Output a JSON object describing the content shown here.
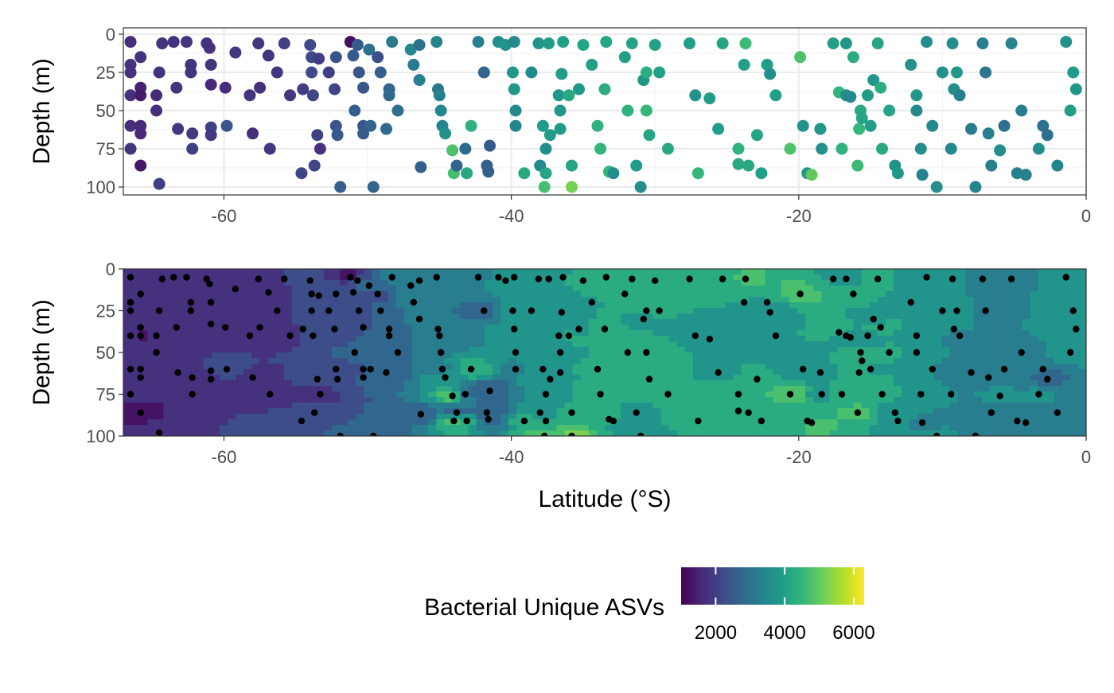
{
  "chart_data": [
    {
      "type": "scatter",
      "title": "",
      "xlabel": "",
      "ylabel": "Depth (m)",
      "xlim": [
        -67,
        0
      ],
      "ylim": [
        0,
        100
      ],
      "y_reversed": true,
      "x_ticks": [
        -60,
        -40,
        -20,
        0
      ],
      "y_ticks": [
        0,
        25,
        50,
        75,
        100
      ],
      "grid": true,
      "color_variable": "Bacterial Unique ASVs",
      "points": [
        [
          -66.5,
          5,
          1700
        ],
        [
          -66.5,
          20,
          1800
        ],
        [
          -66.5,
          25,
          1750
        ],
        [
          -66.5,
          40,
          1750
        ],
        [
          -66.5,
          60,
          1700
        ],
        [
          -66.5,
          75,
          1800
        ],
        [
          -65.8,
          15,
          1750
        ],
        [
          -65.8,
          35,
          1500
        ],
        [
          -65.8,
          40,
          1400
        ],
        [
          -65.8,
          60,
          1650
        ],
        [
          -65.8,
          65,
          1600
        ],
        [
          -65.8,
          86,
          1300
        ],
        [
          -64.7,
          40,
          1650
        ],
        [
          -64.7,
          50,
          1700
        ],
        [
          -64.5,
          25,
          1750
        ],
        [
          -64.5,
          98,
          2000
        ],
        [
          -64.3,
          6,
          1800
        ],
        [
          -63.5,
          5,
          1750
        ],
        [
          -63.3,
          35,
          1800
        ],
        [
          -63.2,
          62,
          1850
        ],
        [
          -62.6,
          5,
          1800
        ],
        [
          -62.3,
          20,
          1800
        ],
        [
          -62.3,
          25,
          1800
        ],
        [
          -62.2,
          65,
          1900
        ],
        [
          -62.2,
          75,
          2000
        ],
        [
          -61.2,
          6,
          1800
        ],
        [
          -61.0,
          9,
          1750
        ],
        [
          -60.9,
          20,
          1800
        ],
        [
          -60.9,
          33,
          1600
        ],
        [
          -60.9,
          61,
          2000
        ],
        [
          -60.9,
          66,
          1900
        ],
        [
          -59.9,
          35,
          1700
        ],
        [
          -59.8,
          60,
          2400
        ],
        [
          -59.2,
          12,
          1850
        ],
        [
          -58.2,
          40,
          1800
        ],
        [
          -58.0,
          65,
          1700
        ],
        [
          -57.6,
          6,
          1850
        ],
        [
          -57.5,
          35,
          1750
        ],
        [
          -56.9,
          14,
          1800
        ],
        [
          -56.8,
          75,
          1850
        ],
        [
          -56.3,
          25,
          1850
        ],
        [
          -55.8,
          6,
          2000
        ],
        [
          -55.4,
          40,
          1850
        ],
        [
          -54.6,
          91,
          2100
        ],
        [
          -54.5,
          36,
          2000
        ],
        [
          -54.0,
          7,
          2200
        ],
        [
          -53.9,
          15,
          2200
        ],
        [
          -53.9,
          25,
          2200
        ],
        [
          -53.8,
          40,
          2100
        ],
        [
          -53.7,
          86,
          2100
        ],
        [
          -53.5,
          66,
          2050
        ],
        [
          -53.4,
          16,
          2000
        ],
        [
          -53.3,
          75,
          1750
        ],
        [
          -52.7,
          25,
          2000
        ],
        [
          -52.3,
          36,
          2100
        ],
        [
          -52.2,
          15,
          2350
        ],
        [
          -52.2,
          60,
          2400
        ],
        [
          -52.1,
          66,
          2500
        ],
        [
          -51.9,
          100,
          2600
        ],
        [
          -51.2,
          5,
          1200
        ],
        [
          -51.0,
          14,
          2500
        ],
        [
          -50.9,
          50,
          2600
        ],
        [
          -50.7,
          7,
          2500
        ],
        [
          -50.6,
          25,
          2400
        ],
        [
          -50.3,
          35,
          2450
        ],
        [
          -50.3,
          60,
          2400
        ],
        [
          -50.3,
          65,
          2500
        ],
        [
          -49.9,
          10,
          3000
        ],
        [
          -49.8,
          60,
          2700
        ],
        [
          -49.6,
          100,
          2700
        ],
        [
          -49.3,
          15,
          2300
        ],
        [
          -49.1,
          25,
          2600
        ],
        [
          -48.7,
          62,
          2800
        ],
        [
          -48.5,
          36,
          2700
        ],
        [
          -48.5,
          40,
          2800
        ],
        [
          -48.3,
          5,
          3200
        ],
        [
          -47.9,
          50,
          2900
        ],
        [
          -47.0,
          10,
          3500
        ],
        [
          -46.8,
          20,
          3200
        ],
        [
          -46.4,
          7,
          3000
        ],
        [
          -46.4,
          30,
          3300
        ],
        [
          -46.3,
          87,
          2600
        ],
        [
          -45.2,
          5,
          3400
        ],
        [
          -45.1,
          36,
          3100
        ],
        [
          -45.0,
          40,
          3300
        ],
        [
          -44.9,
          50,
          3500
        ],
        [
          -44.8,
          60,
          3400
        ],
        [
          -44.6,
          65,
          3700
        ],
        [
          -44.1,
          76,
          4800
        ],
        [
          -44.0,
          91,
          4700
        ],
        [
          -43.8,
          86,
          2700
        ],
        [
          -43.2,
          75,
          2800
        ],
        [
          -43.1,
          91,
          4200
        ],
        [
          -42.8,
          60,
          4400
        ],
        [
          -42.3,
          5,
          3300
        ],
        [
          -41.9,
          25,
          2700
        ],
        [
          -41.7,
          86,
          2600
        ],
        [
          -41.6,
          90,
          2600
        ],
        [
          -41.5,
          73,
          2500
        ],
        [
          -40.9,
          5,
          3600
        ],
        [
          -40.4,
          7,
          3700
        ],
        [
          -39.9,
          25,
          3800
        ],
        [
          -39.8,
          5,
          3500
        ],
        [
          -39.8,
          36,
          3800
        ],
        [
          -39.7,
          50,
          3500
        ],
        [
          -39.7,
          60,
          3400
        ],
        [
          -39.1,
          91,
          4200
        ],
        [
          -38.6,
          25,
          3500
        ],
        [
          -38.1,
          6,
          3700
        ],
        [
          -38.0,
          86,
          3500
        ],
        [
          -37.8,
          60,
          3900
        ],
        [
          -37.7,
          100,
          4700
        ],
        [
          -37.6,
          75,
          3600
        ],
        [
          -37.6,
          91,
          4100
        ],
        [
          -37.4,
          6,
          3900
        ],
        [
          -37.3,
          66,
          3900
        ],
        [
          -36.7,
          40,
          3800
        ],
        [
          -36.6,
          50,
          3800
        ],
        [
          -36.6,
          62,
          3900
        ],
        [
          -36.5,
          26,
          3900
        ],
        [
          -36.4,
          5,
          4000
        ],
        [
          -36.0,
          40,
          4200
        ],
        [
          -35.8,
          86,
          4100
        ],
        [
          -35.8,
          100,
          5200
        ],
        [
          -35.3,
          36,
          3800
        ],
        [
          -35.0,
          7,
          4100
        ],
        [
          -34.4,
          20,
          4000
        ],
        [
          -34.0,
          60,
          4400
        ],
        [
          -33.8,
          75,
          4500
        ],
        [
          -33.5,
          36,
          4300
        ],
        [
          -33.4,
          5,
          4100
        ],
        [
          -33.2,
          90,
          4500
        ],
        [
          -32.9,
          91,
          3600
        ],
        [
          -32.1,
          15,
          4000
        ],
        [
          -31.9,
          50,
          4400
        ],
        [
          -31.6,
          6,
          4100
        ],
        [
          -31.3,
          86,
          3900
        ],
        [
          -31.0,
          100,
          3600
        ],
        [
          -30.8,
          30,
          3800
        ],
        [
          -30.6,
          25,
          4300
        ],
        [
          -30.6,
          50,
          4500
        ],
        [
          -30.4,
          66,
          4100
        ],
        [
          -30.0,
          7,
          4000
        ],
        [
          -29.7,
          25,
          4000
        ],
        [
          -29.1,
          75,
          4200
        ],
        [
          -27.6,
          6,
          4000
        ],
        [
          -27.2,
          40,
          3700
        ],
        [
          -27.0,
          91,
          4500
        ],
        [
          -26.2,
          42,
          3900
        ],
        [
          -25.6,
          62,
          3900
        ],
        [
          -25.3,
          6,
          4100
        ],
        [
          -24.2,
          75,
          4400
        ],
        [
          -24.2,
          85,
          4200
        ],
        [
          -23.8,
          20,
          4000
        ],
        [
          -23.7,
          6,
          4600
        ],
        [
          -23.5,
          86,
          4200
        ],
        [
          -22.9,
          66,
          4100
        ],
        [
          -22.6,
          91,
          4000
        ],
        [
          -22.2,
          20,
          4000
        ],
        [
          -22.0,
          26,
          3600
        ],
        [
          -21.6,
          40,
          4000
        ],
        [
          -20.6,
          75,
          4800
        ],
        [
          -19.9,
          15,
          4800
        ],
        [
          -19.7,
          60,
          3700
        ],
        [
          -19.4,
          91,
          3800
        ],
        [
          -19.1,
          92,
          5000
        ],
        [
          -18.5,
          62,
          3800
        ],
        [
          -18.4,
          75,
          3700
        ],
        [
          -17.6,
          6,
          4000
        ],
        [
          -17.2,
          38,
          4500
        ],
        [
          -17.0,
          75,
          4400
        ],
        [
          -16.7,
          6,
          3800
        ],
        [
          -16.7,
          40,
          3600
        ],
        [
          -16.4,
          41,
          3500
        ],
        [
          -16.2,
          15,
          4300
        ],
        [
          -15.9,
          86,
          4600
        ],
        [
          -15.8,
          62,
          4500
        ],
        [
          -15.7,
          50,
          4200
        ],
        [
          -15.6,
          55,
          4100
        ],
        [
          -15.2,
          40,
          3900
        ],
        [
          -15.0,
          60,
          3900
        ],
        [
          -14.8,
          30,
          3800
        ],
        [
          -14.5,
          6,
          4100
        ],
        [
          -14.3,
          35,
          4300
        ],
        [
          -14.2,
          75,
          4200
        ],
        [
          -13.7,
          50,
          4100
        ],
        [
          -13.3,
          86,
          3700
        ],
        [
          -13.1,
          91,
          3800
        ],
        [
          -12.2,
          20,
          3700
        ],
        [
          -11.8,
          40,
          3800
        ],
        [
          -11.8,
          50,
          3500
        ],
        [
          -11.5,
          75,
          3600
        ],
        [
          -11.4,
          92,
          3300
        ],
        [
          -11.1,
          5,
          3600
        ],
        [
          -10.7,
          60,
          3500
        ],
        [
          -10.4,
          100,
          3600
        ],
        [
          -10.0,
          25,
          3700
        ],
        [
          -9.4,
          75,
          3500
        ],
        [
          -9.3,
          6,
          3600
        ],
        [
          -9.2,
          36,
          3600
        ],
        [
          -9.0,
          25,
          3800
        ],
        [
          -8.8,
          40,
          3300
        ],
        [
          -8.0,
          62,
          3200
        ],
        [
          -7.7,
          100,
          3400
        ],
        [
          -7.2,
          6,
          3300
        ],
        [
          -7.0,
          25,
          3100
        ],
        [
          -6.8,
          65,
          3300
        ],
        [
          -6.6,
          86,
          3300
        ],
        [
          -6.0,
          76,
          3600
        ],
        [
          -5.7,
          60,
          3000
        ],
        [
          -5.2,
          6,
          3400
        ],
        [
          -4.8,
          91,
          3300
        ],
        [
          -4.5,
          50,
          3200
        ],
        [
          -4.2,
          92,
          3300
        ],
        [
          -3.3,
          75,
          3600
        ],
        [
          -3.0,
          60,
          3000
        ],
        [
          -2.7,
          66,
          2900
        ],
        [
          -2.0,
          86,
          3400
        ],
        [
          -1.4,
          5,
          3700
        ],
        [
          -1.1,
          50,
          4000
        ],
        [
          -0.9,
          25,
          3900
        ],
        [
          -0.7,
          36,
          3800
        ]
      ]
    },
    {
      "type": "contour",
      "title": "",
      "xlabel": "Latitude (°S)",
      "ylabel": "Depth (m)",
      "xlim": [
        -67,
        0
      ],
      "ylim": [
        0,
        100
      ],
      "y_reversed": true,
      "x_ticks": [
        -60,
        -40,
        -20,
        0
      ],
      "y_ticks": [
        0,
        25,
        50,
        75,
        100
      ],
      "grid": false,
      "color_variable": "Bacterial Unique ASVs",
      "overlay_points": "sample locations (black)"
    }
  ],
  "legend": {
    "title": "Bacterial Unique ASVs",
    "ticks": [
      2000,
      4000,
      6000
    ],
    "range": [
      1000,
      6300
    ],
    "colors": [
      "#440154",
      "#482878",
      "#3e4989",
      "#31688e",
      "#26828e",
      "#1f9e89",
      "#35b779",
      "#6ece58",
      "#b5de2b",
      "#fde725"
    ]
  }
}
